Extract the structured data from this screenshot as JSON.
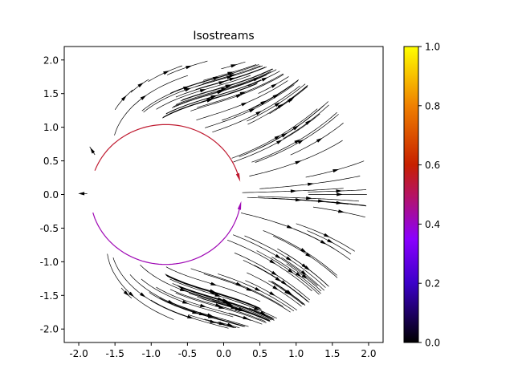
{
  "chart_data": {
    "type": "streamplot",
    "title": "Isostreams",
    "xlabel": "",
    "ylabel": "",
    "xlim": [
      -2.2,
      2.2
    ],
    "ylim": [
      -2.2,
      2.2
    ],
    "xticks": [
      "-2.0",
      "-1.5",
      "-1.0",
      "-0.5",
      "0.0",
      "0.5",
      "1.0",
      "1.5",
      "2.0"
    ],
    "yticks": [
      "-2.0",
      "-1.5",
      "-1.0",
      "-0.5",
      "0.0",
      "0.5",
      "1.0",
      "1.5",
      "2.0"
    ],
    "grid": false,
    "colormap": "gnuplot",
    "colorbar": {
      "min": 0.0,
      "max": 1.0,
      "ticks": [
        "0.0",
        "0.2",
        "0.4",
        "0.6",
        "0.8",
        "1.0"
      ]
    },
    "excluded_disk": {
      "center": [
        -0.8,
        0.0
      ],
      "radius": 1.0
    },
    "domain_radius": 2.0,
    "colored_streams": [
      {
        "from_deg": 160,
        "to_deg": 15,
        "color_value": 0.55
      },
      {
        "from_deg": 195,
        "to_deg": 350,
        "color_value": 0.42
      }
    ]
  },
  "colors": {
    "stream_black": "#000000",
    "axes": "#000000",
    "background": "#ffffff"
  }
}
